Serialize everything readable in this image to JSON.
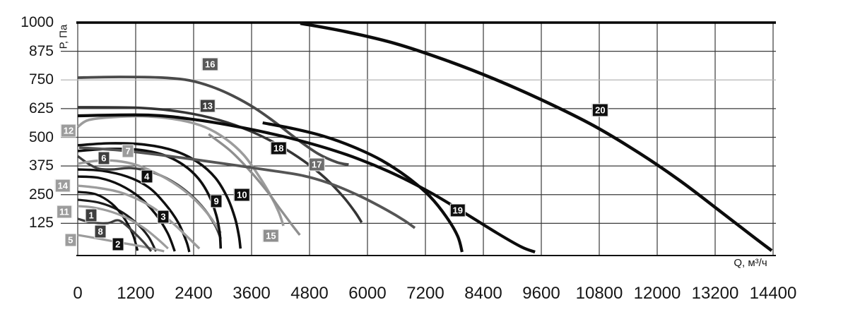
{
  "chart_data": {
    "type": "line",
    "title": "",
    "xlabel": "Q, м³/ч",
    "ylabel": "Р, Па",
    "xlim": [
      0,
      14400
    ],
    "ylim": [
      0,
      1000
    ],
    "grid": true,
    "legend_position": "none",
    "x_ticks": [
      {
        "v": 0,
        "label": "0"
      },
      {
        "v": 1200,
        "label": "1200"
      },
      {
        "v": 2400,
        "label": "2400"
      },
      {
        "v": 3600,
        "label": "3600"
      },
      {
        "v": 4800,
        "label": "4800"
      },
      {
        "v": 6000,
        "label": "6000"
      },
      {
        "v": 7200,
        "label": "7200"
      },
      {
        "v": 8400,
        "label": "8400"
      },
      {
        "v": 9600,
        "label": "9600"
      },
      {
        "v": 10800,
        "label": "10800"
      },
      {
        "v": 12000,
        "label": "12000"
      },
      {
        "v": 13200,
        "label": "13200"
      },
      {
        "v": 14400,
        "label": "14400"
      }
    ],
    "y_ticks": [
      {
        "v": 1000,
        "label": "1000"
      },
      {
        "v": 875,
        "label": "875"
      },
      {
        "v": 750,
        "label": "750"
      },
      {
        "v": 625,
        "label": "625"
      },
      {
        "v": 500,
        "label": "500"
      },
      {
        "v": 375,
        "label": "375"
      },
      {
        "v": 250,
        "label": "250"
      },
      {
        "v": 125,
        "label": "125"
      }
    ],
    "light_gridlines": [
      750
    ],
    "grid_color": "#3a3a3a",
    "light_grid_color": "#b5b5b5",
    "top_border_color": "#000000",
    "series": [
      {
        "id": "1",
        "color": "#1c1c1c",
        "width": 3.2,
        "badge": {
          "q": 280,
          "p": 160,
          "bg": "#3f3f3f"
        },
        "points": [
          [
            0,
            228
          ],
          [
            440,
            215
          ],
          [
            850,
            182
          ],
          [
            1200,
            129
          ],
          [
            1460,
            68
          ],
          [
            1620,
            3
          ]
        ]
      },
      {
        "id": "2",
        "color": "#0f0f0f",
        "width": 3.2,
        "badge": {
          "q": 830,
          "p": 33,
          "bg": "#0f0f0f"
        },
        "points": [
          [
            0,
            262
          ],
          [
            370,
            252
          ],
          [
            700,
            212
          ],
          [
            950,
            151
          ],
          [
            1140,
            77
          ],
          [
            1240,
            6
          ]
        ]
      },
      {
        "id": "3",
        "color": "#0f0f0f",
        "width": 3.4,
        "badge": {
          "q": 1770,
          "p": 154,
          "bg": "#0f0f0f"
        },
        "points": [
          [
            0,
            329
          ],
          [
            440,
            323
          ],
          [
            880,
            292
          ],
          [
            1290,
            237
          ],
          [
            1610,
            166
          ],
          [
            1860,
            83
          ],
          [
            2010,
            3
          ]
        ]
      },
      {
        "id": "4",
        "color": "#0f0f0f",
        "width": 3.4,
        "badge": {
          "q": 1430,
          "p": 329,
          "bg": "#0f0f0f"
        },
        "points": [
          [
            0,
            360
          ],
          [
            510,
            354
          ],
          [
            1020,
            329
          ],
          [
            1460,
            283
          ],
          [
            1800,
            212
          ],
          [
            2080,
            129
          ],
          [
            2250,
            46
          ],
          [
            2310,
            0
          ]
        ]
      },
      {
        "id": "5",
        "color": "#9c9c9c",
        "width": 3.2,
        "badge": {
          "q": -150,
          "p": 52,
          "bg": "#9c9c9c"
        },
        "points": [
          [
            0,
            74
          ],
          [
            440,
            58
          ],
          [
            910,
            40
          ],
          [
            1390,
            22
          ],
          [
            1790,
            3
          ]
        ]
      },
      {
        "id": "6",
        "color": "#3f3f3f",
        "width": 3.4,
        "badge": {
          "q": 540,
          "p": 409,
          "bg": "#3f3f3f"
        },
        "points": [
          [
            0,
            418
          ],
          [
            220,
            385
          ],
          [
            440,
            363
          ],
          [
            730,
            360
          ],
          [
            1100,
            366
          ],
          [
            1540,
            348
          ],
          [
            1980,
            305
          ],
          [
            2340,
            249
          ],
          [
            2630,
            185
          ],
          [
            2850,
            114
          ],
          [
            2960,
            58
          ]
        ]
      },
      {
        "id": "7",
        "color": "#9c9c9c",
        "width": 3.4,
        "badge": {
          "q": 1040,
          "p": 440,
          "bg": "#9c9c9c"
        },
        "points": [
          [
            0,
            385
          ],
          [
            370,
            397
          ],
          [
            810,
            397
          ],
          [
            1240,
            378
          ],
          [
            1680,
            338
          ],
          [
            2090,
            286
          ],
          [
            2440,
            225
          ],
          [
            2750,
            151
          ],
          [
            2960,
            83
          ]
        ]
      },
      {
        "id": "8",
        "color": "#3f3f3f",
        "width": 3.2,
        "badge": {
          "q": 470,
          "p": 89,
          "bg": "#3f3f3f"
        },
        "points": [
          [
            0,
            145
          ],
          [
            290,
            129
          ],
          [
            620,
            126
          ],
          [
            850,
            138
          ],
          [
            1100,
            98
          ],
          [
            1350,
            46
          ],
          [
            1520,
            3
          ]
        ]
      },
      {
        "id": "9",
        "color": "#0f0f0f",
        "width": 3.6,
        "badge": {
          "q": 2870,
          "p": 222,
          "bg": "#0f0f0f"
        },
        "points": [
          [
            0,
            440
          ],
          [
            590,
            449
          ],
          [
            1240,
            446
          ],
          [
            1790,
            422
          ],
          [
            2200,
            378
          ],
          [
            2500,
            320
          ],
          [
            2720,
            246
          ],
          [
            2870,
            160
          ],
          [
            2940,
            83
          ],
          [
            2960,
            15
          ]
        ]
      },
      {
        "id": "10",
        "color": "#0f0f0f",
        "width": 3.6,
        "badge": {
          "q": 3400,
          "p": 249,
          "bg": "#0f0f0f"
        },
        "points": [
          [
            0,
            465
          ],
          [
            660,
            474
          ],
          [
            1390,
            468
          ],
          [
            2020,
            440
          ],
          [
            2490,
            391
          ],
          [
            2850,
            323
          ],
          [
            3100,
            237
          ],
          [
            3260,
            145
          ],
          [
            3340,
            68
          ],
          [
            3370,
            15
          ]
        ]
      },
      {
        "id": "11",
        "color": "#9c9c9c",
        "width": 3.2,
        "badge": {
          "q": -280,
          "p": 175,
          "bg": "#9c9c9c"
        },
        "points": [
          [
            0,
            200
          ],
          [
            320,
            194
          ],
          [
            700,
            175
          ],
          [
            1050,
            145
          ],
          [
            1390,
            102
          ],
          [
            1680,
            52
          ],
          [
            1870,
            15
          ]
        ]
      },
      {
        "id": "12",
        "color": "#9c9c9c",
        "width": 3.6,
        "badge": {
          "q": -190,
          "p": 529,
          "bg": "#9c9c9c"
        },
        "points": [
          [
            0,
            545
          ],
          [
            220,
            575
          ],
          [
            730,
            588
          ],
          [
            1460,
            591
          ],
          [
            2120,
            575
          ],
          [
            2630,
            545
          ],
          [
            3070,
            492
          ],
          [
            3440,
            422
          ],
          [
            3730,
            338
          ],
          [
            3980,
            252
          ],
          [
            4160,
            175
          ],
          [
            4260,
            114
          ]
        ]
      },
      {
        "id": "13",
        "color": "#353535",
        "width": 3.6,
        "badge": {
          "q": 2690,
          "p": 637,
          "bg": "#3f3f3f"
        },
        "points": [
          [
            0,
            631
          ],
          [
            1320,
            628
          ],
          [
            2200,
            609
          ],
          [
            2930,
            575
          ],
          [
            3590,
            526
          ],
          [
            4170,
            465
          ],
          [
            4680,
            397
          ],
          [
            5120,
            323
          ],
          [
            5490,
            243
          ],
          [
            5740,
            175
          ],
          [
            5880,
            129
          ]
        ]
      },
      {
        "id": "14",
        "color": "#9c9c9c",
        "width": 3.4,
        "badge": {
          "q": -310,
          "p": 289,
          "bg": "#9c9c9c"
        },
        "points": [
          [
            0,
            289
          ],
          [
            410,
            280
          ],
          [
            850,
            262
          ],
          [
            1260,
            228
          ],
          [
            1640,
            182
          ],
          [
            2000,
            120
          ],
          [
            2310,
            58
          ],
          [
            2520,
            15
          ]
        ]
      },
      {
        "id": "15",
        "color": "#8f8f8f",
        "width": 3.4,
        "badge": {
          "q": 4000,
          "p": 71,
          "bg": "#8f8f8f"
        },
        "points": [
          [
            2710,
            514
          ],
          [
            3150,
            443
          ],
          [
            3540,
            360
          ],
          [
            3910,
            268
          ],
          [
            4210,
            182
          ],
          [
            4450,
            114
          ],
          [
            4600,
            74
          ]
        ]
      },
      {
        "id": "16",
        "color": "#4a4a4a",
        "width": 3.8,
        "badge": {
          "q": 2740,
          "p": 818,
          "bg": "#5a5a5a"
        },
        "points": [
          [
            0,
            760
          ],
          [
            880,
            763
          ],
          [
            1760,
            760
          ],
          [
            2310,
            748
          ],
          [
            2780,
            720
          ],
          [
            3220,
            680
          ],
          [
            3660,
            628
          ],
          [
            4100,
            563
          ],
          [
            4540,
            492
          ],
          [
            4980,
            428
          ],
          [
            5370,
            391
          ],
          [
            5610,
            381
          ]
        ]
      },
      {
        "id": "17",
        "color": "#555555",
        "width": 3.8,
        "badge": {
          "q": 4950,
          "p": 381,
          "bg": "#6e6e6e"
        },
        "points": [
          [
            30,
            455
          ],
          [
            880,
            443
          ],
          [
            1900,
            418
          ],
          [
            2930,
            388
          ],
          [
            3950,
            357
          ],
          [
            4680,
            332
          ],
          [
            5270,
            295
          ],
          [
            5850,
            243
          ],
          [
            6410,
            182
          ],
          [
            6760,
            138
          ],
          [
            6980,
            105
          ]
        ]
      },
      {
        "id": "18",
        "color": "#0c0c0c",
        "width": 4.2,
        "badge": {
          "q": 4160,
          "p": 452,
          "bg": "#0f0f0f"
        },
        "points": [
          [
            3830,
            563
          ],
          [
            4460,
            538
          ],
          [
            5090,
            505
          ],
          [
            5710,
            458
          ],
          [
            6290,
            400
          ],
          [
            6830,
            326
          ],
          [
            7290,
            243
          ],
          [
            7640,
            151
          ],
          [
            7870,
            68
          ],
          [
            7960,
            0
          ]
        ]
      },
      {
        "id": "19",
        "color": "#0c0c0c",
        "width": 4.2,
        "badge": {
          "q": 7870,
          "p": 182,
          "bg": "#0f0f0f"
        },
        "points": [
          [
            0,
            594
          ],
          [
            1460,
            597
          ],
          [
            2490,
            575
          ],
          [
            3510,
            538
          ],
          [
            4540,
            489
          ],
          [
            5560,
            425
          ],
          [
            6440,
            351
          ],
          [
            7290,
            261
          ],
          [
            8020,
            169
          ],
          [
            8680,
            83
          ],
          [
            9190,
            22
          ],
          [
            9470,
            0
          ]
        ]
      },
      {
        "id": "20",
        "color": "#0c0c0c",
        "width": 4.5,
        "badge": {
          "q": 10820,
          "p": 618,
          "bg": "#0f0f0f"
        },
        "points": [
          [
            4610,
            997
          ],
          [
            5560,
            960
          ],
          [
            6590,
            908
          ],
          [
            7610,
            837
          ],
          [
            8630,
            754
          ],
          [
            9660,
            658
          ],
          [
            10680,
            551
          ],
          [
            11630,
            431
          ],
          [
            12510,
            305
          ],
          [
            13320,
            175
          ],
          [
            13980,
            68
          ],
          [
            14370,
            6
          ]
        ]
      }
    ]
  }
}
